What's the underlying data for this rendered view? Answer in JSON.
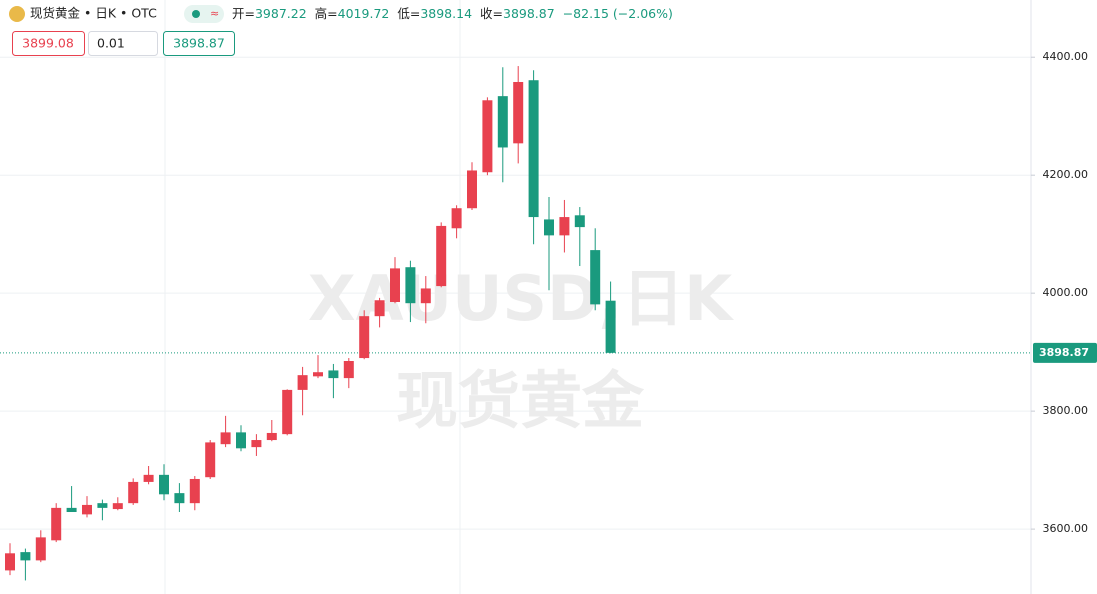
{
  "chart_data": {
    "type": "candlestick",
    "title": "现货黄金 • 日K • OTC",
    "open": [
      3530,
      3561,
      3547,
      3581,
      3636,
      3625,
      3644,
      3634,
      3644,
      3680,
      3692,
      3661,
      3644,
      3688,
      3744,
      3764,
      3739,
      3751,
      3761,
      3836,
      3859,
      3869,
      3856,
      3890,
      3961,
      3985,
      4044,
      3983,
      4012,
      4110,
      4144,
      4205,
      4334,
      4254,
      4361,
      4125,
      4098,
      4132,
      4073,
      3987.22
    ],
    "high": [
      3576,
      3567,
      3598,
      3644,
      3673,
      3656,
      3650,
      3654,
      3686,
      3707,
      3710,
      3678,
      3690,
      3751,
      3792,
      3776,
      3761,
      3785,
      3837,
      3875,
      3895,
      3880,
      3890,
      3971,
      3992,
      4061,
      4055,
      4029,
      4120,
      4149,
      4222,
      4332,
      4383,
      4385,
      4378,
      4163,
      4158,
      4146,
      4110,
      4019.72
    ],
    "low": [
      3522,
      3513,
      3544,
      3578,
      3629,
      3620,
      3615,
      3632,
      3641,
      3676,
      3649,
      3629,
      3632,
      3685,
      3739,
      3732,
      3724,
      3749,
      3759,
      3793,
      3856,
      3822,
      3839,
      3888,
      3942,
      3983,
      3951,
      3949,
      4010,
      4093,
      4141,
      4200,
      4188,
      4220,
      4083,
      4005,
      4069,
      4046,
      3971,
      3898.14
    ],
    "close": [
      3559,
      3547,
      3586,
      3636,
      3629,
      3641,
      3636,
      3644,
      3680,
      3692,
      3659,
      3644,
      3685,
      3747,
      3764,
      3737,
      3751,
      3763,
      3836,
      3861,
      3866,
      3856,
      3885,
      3961,
      3988,
      4042,
      3983,
      4008,
      4114,
      4144,
      4208,
      4327,
      4247,
      4358,
      4129,
      4098,
      4129,
      4112,
      3981,
      3898.87
    ],
    "up_color": "#e8414f",
    "down_color": "#1a9a7e",
    "ylim": [
      3490,
      4497
    ],
    "yticks": [
      {
        "value": 3600,
        "label": "3600.00"
      },
      {
        "value": 3800,
        "label": "3800.00"
      },
      {
        "value": 4000,
        "label": "4000.00"
      },
      {
        "value": 4200,
        "label": "4200.00"
      },
      {
        "value": 4400,
        "label": "4400.00"
      }
    ],
    "grid": true,
    "last_price_line": true,
    "watermark": [
      "XAUUSD,日K",
      "现货黄金"
    ]
  },
  "header": {
    "open_label": "开=",
    "high_label": "高=",
    "low_label": "低=",
    "close_label": "收=",
    "change": "−82.15 (−2.06%)"
  },
  "inputs": [
    "3899.08",
    "0.01",
    "3898.87"
  ]
}
